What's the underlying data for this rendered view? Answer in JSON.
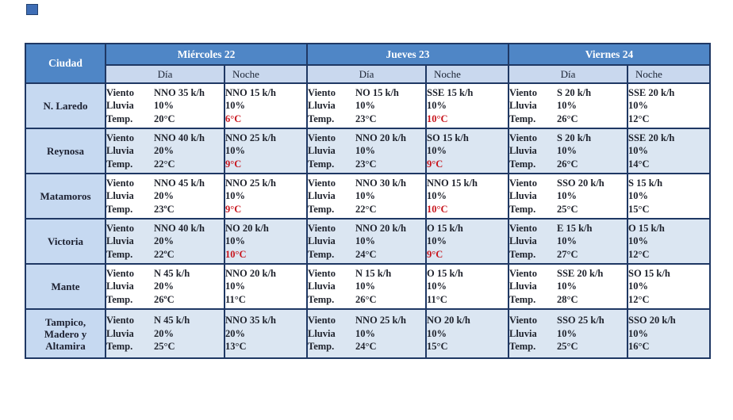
{
  "artifact": {
    "note": "small-blue-square"
  },
  "table": {
    "corner_header": "Ciudad",
    "days": [
      {
        "label": "Miércoles 22"
      },
      {
        "label": "Jueves 23"
      },
      {
        "label": "Viernes 24"
      }
    ],
    "subheaders": {
      "day": "Día",
      "night": "Noche"
    },
    "field_labels": {
      "wind": "Viento",
      "rain": "Lluvia",
      "temp": "Temp."
    },
    "colors": {
      "header_fill": "#4f86c6",
      "subheader_fill": "#c9d8ee",
      "city_fill": "#c6d9f1",
      "tinted_row_fill": "#dbe6f2",
      "border": "#1f3864",
      "text": "#20242e",
      "alert_red": "#c8161e"
    },
    "rows": [
      {
        "city": "N. Laredo",
        "tinted": false,
        "cells": [
          {
            "type": "day",
            "wind": "NNO 35 k/h",
            "rain": "10%",
            "temp": "20°C",
            "temp_red": false
          },
          {
            "type": "night",
            "wind": "NNO 15 k/h",
            "rain": "10%",
            "temp": "6°C",
            "temp_red": true
          },
          {
            "type": "day",
            "wind": "NO 15 k/h",
            "rain": "10%",
            "temp": "23°C",
            "temp_red": false
          },
          {
            "type": "night",
            "wind": "SSE 15 k/h",
            "rain": "10%",
            "temp": "10°C",
            "temp_red": true
          },
          {
            "type": "day",
            "wind": "S 20 k/h",
            "rain": "10%",
            "temp": "26°C",
            "temp_red": false
          },
          {
            "type": "night",
            "wind": "SSE 20 k/h",
            "rain": "10%",
            "temp": "12°C",
            "temp_red": false
          }
        ]
      },
      {
        "city": "Reynosa",
        "tinted": true,
        "cells": [
          {
            "type": "day",
            "wind": "NNO 40 k/h",
            "rain": "20%",
            "temp": "22°C",
            "temp_red": false
          },
          {
            "type": "night",
            "wind": "NNO 25 k/h",
            "rain": "10%",
            "temp": "9°C",
            "temp_red": true
          },
          {
            "type": "day",
            "wind": "NNO 20 k/h",
            "rain": "10%",
            "temp": "23°C",
            "temp_red": false
          },
          {
            "type": "night",
            "wind": "SO 15 k/h",
            "rain": "10%",
            "temp": "9°C",
            "temp_red": true
          },
          {
            "type": "day",
            "wind": "S 20 k/h",
            "rain": "10%",
            "temp": "26°C",
            "temp_red": false
          },
          {
            "type": "night",
            "wind": "SSE 20 k/h",
            "rain": "10%",
            "temp": "14°C",
            "temp_red": false
          }
        ]
      },
      {
        "city": "Matamoros",
        "tinted": false,
        "cells": [
          {
            "type": "day",
            "wind": "NNO 45 k/h",
            "rain": "20%",
            "temp": "23ºC",
            "temp_red": false
          },
          {
            "type": "night",
            "wind": "NNO 25 k/h",
            "rain": "10%",
            "temp": "9°C",
            "temp_red": true
          },
          {
            "type": "day",
            "wind": "NNO 30 k/h",
            "rain": "10%",
            "temp": "22°C",
            "temp_red": false
          },
          {
            "type": "night",
            "wind": "NNO 15 k/h",
            "rain": "10%",
            "temp": "10°C",
            "temp_red": true
          },
          {
            "type": "day",
            "wind": "SSO 20 k/h",
            "rain": "10%",
            "temp": "25°C",
            "temp_red": false
          },
          {
            "type": "night",
            "wind": "S 15 k/h",
            "rain": "10%",
            "temp": "15°C",
            "temp_red": false
          }
        ]
      },
      {
        "city": "Victoria",
        "tinted": true,
        "cells": [
          {
            "type": "day",
            "wind": "NNO 40 k/h",
            "rain": "20%",
            "temp": "22ºC",
            "temp_red": false
          },
          {
            "type": "night",
            "wind": "NO 20 k/h",
            "rain": "10%",
            "temp": "10°C",
            "temp_red": true
          },
          {
            "type": "day",
            "wind": "NNO 20 k/h",
            "rain": "10%",
            "temp": "24°C",
            "temp_red": false
          },
          {
            "type": "night",
            "wind": "O 15 k/h",
            "rain": "10%",
            "temp": "9°C",
            "temp_red": true
          },
          {
            "type": "day",
            "wind": "E 15 k/h",
            "rain": "10%",
            "temp": "27°C",
            "temp_red": false
          },
          {
            "type": "night",
            "wind": "O 15 k/h",
            "rain": "10%",
            "temp": "12°C",
            "temp_red": false
          }
        ]
      },
      {
        "city": "Mante",
        "tinted": false,
        "cells": [
          {
            "type": "day",
            "wind": "N 45 k/h",
            "rain": "20%",
            "temp": "26ºC",
            "temp_red": false
          },
          {
            "type": "night",
            "wind": "NNO 20 k/h",
            "rain": "10%",
            "temp": "11°C",
            "temp_red": false
          },
          {
            "type": "day",
            "wind": "N 15 k/h",
            "rain": "10%",
            "temp": "26°C",
            "temp_red": false
          },
          {
            "type": "night",
            "wind": "O 15 k/h",
            "rain": "10%",
            "temp": "11°C",
            "temp_red": false
          },
          {
            "type": "day",
            "wind": "SSE 20 k/h",
            "rain": "10%",
            "temp": "28°C",
            "temp_red": false
          },
          {
            "type": "night",
            "wind": "SO 15 k/h",
            "rain": "10%",
            "temp": "12°C",
            "temp_red": false
          }
        ]
      },
      {
        "city": "Tampico, Madero y Altamira",
        "tinted": true,
        "cells": [
          {
            "type": "day",
            "wind": "N 45 k/h",
            "rain": "20%",
            "temp": "25°C",
            "temp_red": false
          },
          {
            "type": "night",
            "wind": "NNO 35 k/h",
            "rain": "20%",
            "temp": "13°C",
            "temp_red": false
          },
          {
            "type": "day",
            "wind": "NNO 25 k/h",
            "rain": "10%",
            "temp": "24°C",
            "temp_red": false
          },
          {
            "type": "night",
            "wind": "NO 20 k/h",
            "rain": "10%",
            "temp": "15°C",
            "temp_red": false
          },
          {
            "type": "day",
            "wind": "SSO 25 k/h",
            "rain": "10%",
            "temp": "25°C",
            "temp_red": false
          },
          {
            "type": "night",
            "wind": "SSO 20 k/h",
            "rain": "10%",
            "temp": "16°C",
            "temp_red": false
          }
        ]
      }
    ]
  }
}
